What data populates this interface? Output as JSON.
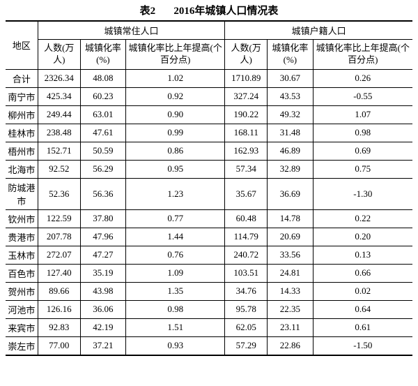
{
  "title_prefix": "表2",
  "title_main": "2016年城镇人口情况表",
  "columns": {
    "region": "地区",
    "group1": "城镇常住人口",
    "group2": "城镇户籍人口",
    "count": "人数(万人)",
    "rate": "城镇化率(%)",
    "change": "城镇化率比上年提高(个百分点)"
  },
  "rows": [
    {
      "region": "合计",
      "c1": "2326.34",
      "c2": "48.08",
      "c3": "1.02",
      "c4": "1710.89",
      "c5": "30.67",
      "c6": "0.26"
    },
    {
      "region": "南宁市",
      "c1": "425.34",
      "c2": "60.23",
      "c3": "0.92",
      "c4": "327.24",
      "c5": "43.53",
      "c6": "-0.55"
    },
    {
      "region": "柳州市",
      "c1": "249.44",
      "c2": "63.01",
      "c3": "0.90",
      "c4": "190.22",
      "c5": "49.32",
      "c6": "1.07"
    },
    {
      "region": "桂林市",
      "c1": "238.48",
      "c2": "47.61",
      "c3": "0.99",
      "c4": "168.11",
      "c5": "31.48",
      "c6": "0.98"
    },
    {
      "region": "梧州市",
      "c1": "152.71",
      "c2": "50.59",
      "c3": "0.86",
      "c4": "162.93",
      "c5": "46.89",
      "c6": "0.69"
    },
    {
      "region": "北海市",
      "c1": "92.52",
      "c2": "56.29",
      "c3": "0.95",
      "c4": "57.34",
      "c5": "32.89",
      "c6": "0.75"
    },
    {
      "region": "防城港市",
      "c1": "52.36",
      "c2": "56.36",
      "c3": "1.23",
      "c4": "35.67",
      "c5": "36.69",
      "c6": "-1.30"
    },
    {
      "region": "钦州市",
      "c1": "122.59",
      "c2": "37.80",
      "c3": "0.77",
      "c4": "60.48",
      "c5": "14.78",
      "c6": "0.22"
    },
    {
      "region": "贵港市",
      "c1": "207.78",
      "c2": "47.96",
      "c3": "1.44",
      "c4": "114.79",
      "c5": "20.69",
      "c6": "0.20"
    },
    {
      "region": "玉林市",
      "c1": "272.07",
      "c2": "47.27",
      "c3": "0.76",
      "c4": "240.72",
      "c5": "33.56",
      "c6": "0.13"
    },
    {
      "region": "百色市",
      "c1": "127.40",
      "c2": "35.19",
      "c3": "1.09",
      "c4": "103.51",
      "c5": "24.81",
      "c6": "0.66"
    },
    {
      "region": "贺州市",
      "c1": "89.66",
      "c2": "43.98",
      "c3": "1.35",
      "c4": "34.76",
      "c5": "14.33",
      "c6": "0.02"
    },
    {
      "region": "河池市",
      "c1": "126.16",
      "c2": "36.06",
      "c3": "0.98",
      "c4": "95.78",
      "c5": "22.35",
      "c6": "0.64"
    },
    {
      "region": "来宾市",
      "c1": "92.83",
      "c2": "42.19",
      "c3": "1.51",
      "c4": "62.05",
      "c5": "23.11",
      "c6": "0.61"
    },
    {
      "region": "崇左市",
      "c1": "77.00",
      "c2": "37.21",
      "c3": "0.93",
      "c4": "57.29",
      "c5": "22.86",
      "c6": "-1.50"
    }
  ],
  "style": {
    "font_size_body": 13,
    "font_size_title": 15,
    "border_color": "#000000",
    "background_color": "#ffffff",
    "text_color": "#000000"
  }
}
